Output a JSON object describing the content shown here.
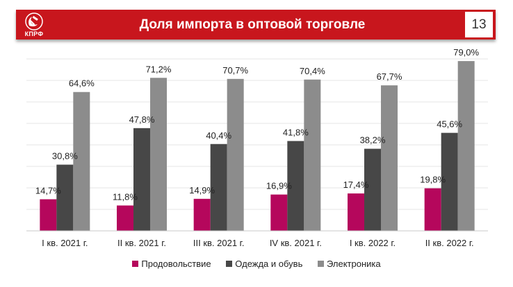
{
  "header": {
    "title": "Доля импорта в оптовой торговле",
    "page_number": "13",
    "logo_text": "КПРФ",
    "logo_icon": "hammer-sickle-icon"
  },
  "colors": {
    "header_bg": "#c8161d",
    "series": [
      "#b5075c",
      "#474747",
      "#8c8c8c"
    ]
  },
  "chart_data": {
    "type": "bar",
    "title": "Доля импорта в оптовой торговле",
    "xlabel": "",
    "ylabel": "",
    "ylim": [
      0,
      85
    ],
    "grid": true,
    "legend_position": "bottom",
    "categories": [
      "I кв. 2021 г.",
      "II кв. 2021 г.",
      "III кв. 2021 г.",
      "IV кв. 2021 г.",
      "I кв. 2022 г.",
      "II кв. 2022 г."
    ],
    "series": [
      {
        "name": "Продовольствие",
        "values": [
          14.7,
          11.8,
          14.9,
          16.9,
          17.4,
          19.8
        ],
        "labels": [
          "14,7%",
          "11,8%",
          "14,9%",
          "16,9%",
          "17,4%",
          "19,8%"
        ]
      },
      {
        "name": "Одежда и обувь",
        "values": [
          30.8,
          47.8,
          40.4,
          41.8,
          38.2,
          45.6
        ],
        "labels": [
          "30,8%",
          "47,8%",
          "40,4%",
          "41,8%",
          "38,2%",
          "45,6%"
        ]
      },
      {
        "name": "Электроника",
        "values": [
          64.6,
          71.2,
          70.7,
          70.4,
          67.7,
          79.0
        ],
        "labels": [
          "64,6%",
          "71,2%",
          "70,7%",
          "70,4%",
          "67,7%",
          "79,0%"
        ]
      }
    ]
  }
}
